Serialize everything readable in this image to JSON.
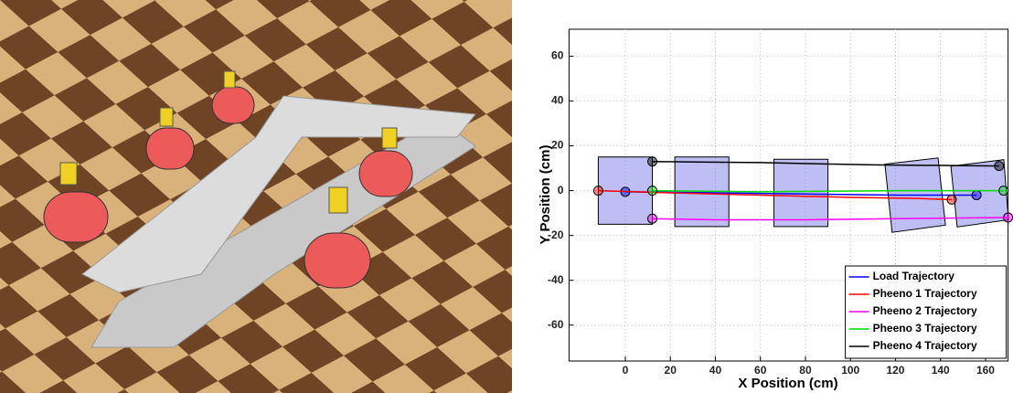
{
  "chart_data": {
    "type": "line",
    "xlabel": "X Position (cm)",
    "ylabel": "Y Position (cm)",
    "xlim": [
      -25,
      170
    ],
    "xticks": [
      0,
      20,
      40,
      60,
      80,
      100,
      120,
      140,
      160
    ],
    "ylim": [
      -76,
      72
    ],
    "yticks": [
      -60,
      -40,
      -20,
      0,
      20,
      40,
      60
    ],
    "grid": true,
    "legend": "lower right",
    "load_boxes": [
      {
        "x": [
          -12,
          12,
          12,
          -12
        ],
        "y": [
          15,
          15,
          -15,
          -15
        ]
      },
      {
        "x": [
          22,
          46,
          46,
          22
        ],
        "y": [
          15,
          15,
          -16,
          -16
        ]
      },
      {
        "x": [
          66,
          90,
          90,
          66
        ],
        "y": [
          14,
          14,
          -16,
          -16
        ]
      },
      {
        "x": [
          115.3,
          138.9,
          142.2,
          118.5
        ],
        "y": [
          11.8,
          14.6,
          -15.4,
          -18.6
        ]
      },
      {
        "x": [
          144.6,
          168.1,
          170.2,
          147.4
        ],
        "y": [
          10.9,
          13.8,
          -13,
          -16.2
        ]
      }
    ],
    "series": [
      {
        "name": "Load Trajectory",
        "color": "#0000ff",
        "x": [
          0,
          40,
          80,
          120,
          156
        ],
        "values": [
          -0.5,
          -1,
          -1.5,
          -2,
          -2
        ]
      },
      {
        "name": "Pheeno 1 Trajectory",
        "color": "#ff0000",
        "x": [
          -12,
          20,
          60,
          100,
          130,
          145
        ],
        "values": [
          0,
          -1,
          -2,
          -3,
          -3.5,
          -4
        ]
      },
      {
        "name": "Pheeno 2 Trajectory",
        "color": "#ff00ff",
        "x": [
          12,
          40,
          80,
          120,
          170
        ],
        "values": [
          -12.5,
          -13,
          -13,
          -12.5,
          -12
        ]
      },
      {
        "name": "Pheeno 3 Trajectory",
        "color": "#00dd00",
        "x": [
          12,
          60,
          120,
          168
        ],
        "values": [
          0,
          -0.5,
          0,
          0
        ]
      },
      {
        "name": "Pheeno 4 Trajectory",
        "color": "#000000",
        "x": [
          12,
          60,
          110,
          166
        ],
        "values": [
          13,
          12.5,
          11.5,
          11
        ]
      }
    ]
  }
}
